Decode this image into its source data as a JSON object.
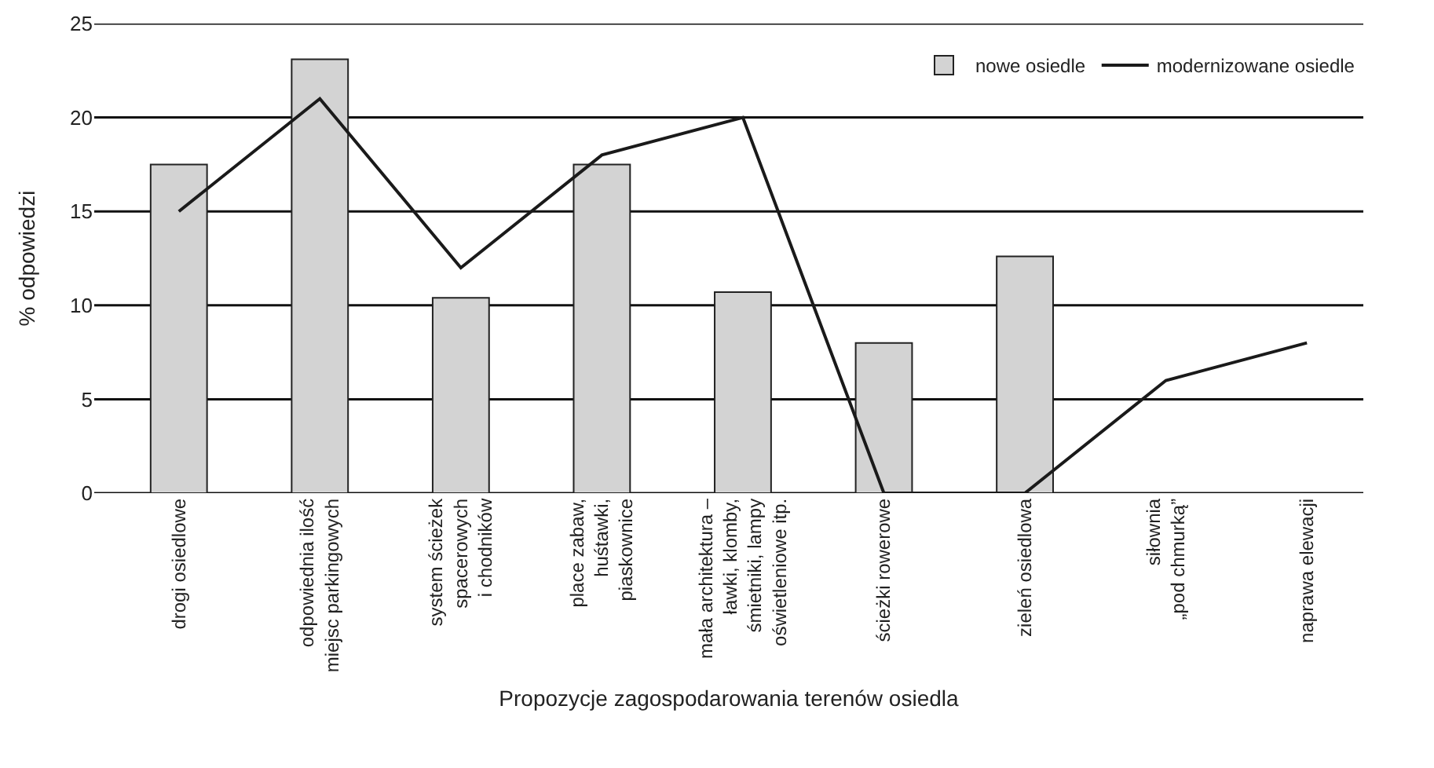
{
  "chart_data": {
    "type": "bar",
    "xlabel": "Propozycje zagospodarowania terenów osiedla",
    "ylabel": "% odpowiedzi",
    "categories": [
      "drogi osiedlowe",
      "odpowiednia ilość\nmiejsc parkingowych",
      "system ścieżek\nspacerowych\ni chodników",
      "place zabaw,\nhuśtawki,\npiaskownice",
      "mała architektura –\nławki, klomby,\nśmietniki, lampy\noświetleniowe itp.",
      "ścieżki rowerowe",
      "zieleń osiedlowa",
      "siłownia\n„pod chmurką”",
      "naprawa elewacji"
    ],
    "series": [
      {
        "name": "nowe osiedle",
        "color": "#d3d3d3",
        "values": [
          17.5,
          23.1,
          10.4,
          17.5,
          10.7,
          8,
          12.6,
          null,
          null
        ]
      },
      {
        "name": "modernizowane osiedle",
        "type": "line",
        "color": "#1a1a1a",
        "values": [
          15,
          21,
          12,
          18,
          20,
          0,
          0,
          6,
          8
        ]
      }
    ],
    "ylim": [
      0,
      25
    ],
    "yticks": [
      0,
      5,
      10,
      15,
      20,
      25
    ],
    "grid": "y",
    "legend": "top right",
    "marker": "none",
    "line_style": "solid"
  }
}
